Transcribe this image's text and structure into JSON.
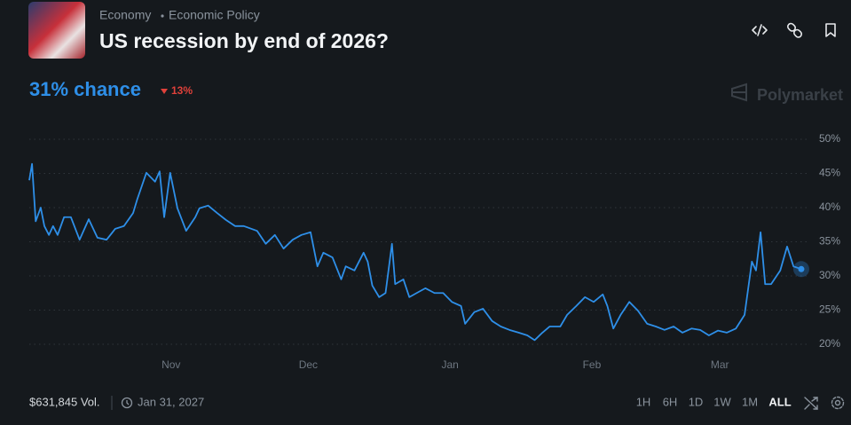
{
  "header": {
    "breadcrumb": [
      "Economy",
      "Economic Policy"
    ],
    "title": "US recession by end of 2026?"
  },
  "summary": {
    "chance": "31% chance",
    "change": "13%"
  },
  "brand": "Polymarket",
  "chart_data": {
    "type": "line",
    "x": [
      0,
      0.6,
      1.4,
      2.5,
      3.3,
      4.3,
      5.2,
      6.2,
      7.6,
      9.1,
      11,
      13,
      14.9,
      16.9,
      18.8,
      20.7,
      22.7,
      23.6,
      25.6,
      27.5,
      28.5,
      29.5,
      30.8,
      32.4,
      34.3,
      36.3,
      37.2,
      39.1,
      41.1,
      43,
      45,
      46.9,
      49.8,
      51.7,
      53.7,
      55.6,
      57.6,
      59.5,
      61.5,
      63,
      64.3,
      66.3,
      68.2,
      69.2,
      71.1,
      73.1,
      74,
      75,
      76.5,
      77.9,
      79.3,
      80,
      81.8,
      83.1,
      84.7,
      86.6,
      88.6,
      90.5,
      92.4,
      94.4,
      95.3,
      97.3,
      99.2,
      101.2,
      103.1,
      105,
      107,
      108.9,
      110.5,
      112.2,
      113.8,
      116.1,
      117.6,
      119.6,
      121.5,
      123.4,
      125.4,
      126.4,
      127.7,
      129.3,
      131.2,
      133.1,
      135.1,
      137,
      138.9,
      140.9,
      142.8,
      144.8,
      146.7,
      148.6,
      150.6,
      152.5,
      154.5,
      156.4,
      158,
      158.9,
      159.9,
      160.9,
      162.2,
      164.2,
      165.7,
      167.1,
      168.8
    ],
    "series": [
      {
        "color": "#2e8fe8",
        "values": [
          44,
          46.4,
          38,
          40,
          37.3,
          36,
          37.3,
          36,
          38.6,
          38.6,
          35.3,
          38.3,
          35.6,
          35.3,
          36.9,
          37.3,
          39.2,
          41.2,
          45.1,
          43.8,
          45.3,
          38.6,
          45.1,
          39.9,
          36.6,
          38.6,
          39.9,
          40.3,
          39.2,
          38.2,
          37.3,
          37.3,
          36.6,
          34.7,
          36,
          34,
          35.3,
          36,
          36.4,
          31.4,
          33.4,
          32.7,
          29.5,
          31.4,
          30.8,
          33.4,
          32.1,
          28.6,
          26.9,
          27.5,
          34.7,
          28.8,
          29.5,
          26.9,
          27.5,
          28.2,
          27.5,
          27.5,
          26.2,
          25.6,
          23,
          24.7,
          25.2,
          23.4,
          22.6,
          22.1,
          21.7,
          21.3,
          20.6,
          21.7,
          22.6,
          22.6,
          24.3,
          25.6,
          26.9,
          26.2,
          27.3,
          25.6,
          22.3,
          24.3,
          26.2,
          24.9,
          23,
          22.6,
          22.1,
          22.6,
          21.7,
          22.3,
          22.1,
          21.3,
          22,
          21.7,
          22.3,
          24.3,
          32.1,
          30.8,
          36.4,
          28.8,
          28.8,
          30.8,
          34.3,
          31.4,
          31
        ]
      }
    ],
    "xlim": [
      0,
      169
    ],
    "xticks": [
      {
        "value": 31,
        "label": "Nov"
      },
      {
        "value": 61,
        "label": "Dec"
      },
      {
        "value": 92,
        "label": "Jan"
      },
      {
        "value": 123,
        "label": "Feb"
      },
      {
        "value": 151,
        "label": "Mar"
      }
    ],
    "ylim": [
      20,
      50
    ],
    "yticks": [
      {
        "value": 20,
        "label": "20%"
      },
      {
        "value": 25,
        "label": "25%"
      },
      {
        "value": 30,
        "label": "30%"
      },
      {
        "value": 35,
        "label": "35%"
      },
      {
        "value": 40,
        "label": "40%"
      },
      {
        "value": 45,
        "label": "45%"
      },
      {
        "value": 50,
        "label": "50%"
      }
    ],
    "grid": true
  },
  "footer": {
    "volume": "$631,845 Vol.",
    "end_date": "Jan 31, 2027",
    "ranges": [
      "1H",
      "6H",
      "1D",
      "1W",
      "1M",
      "ALL"
    ],
    "active_range": 5
  }
}
